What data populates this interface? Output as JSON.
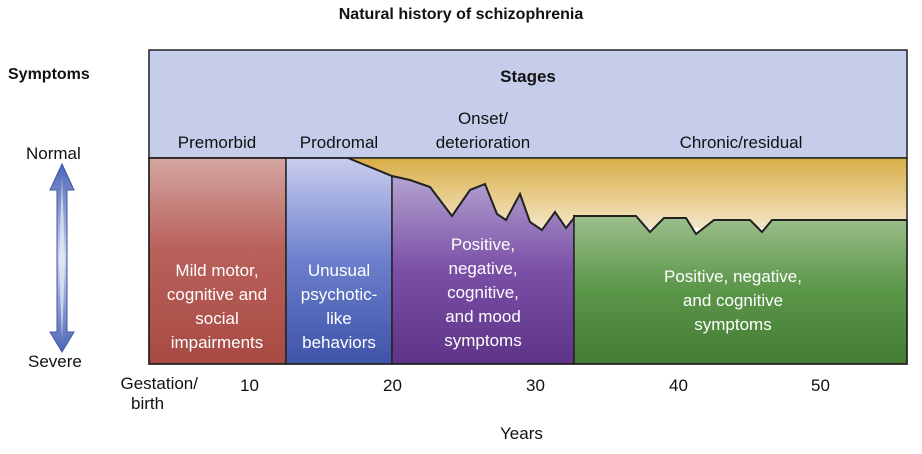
{
  "title": "Natural history of schizophrenia",
  "symptoms_label": "Symptoms",
  "stages_label": "Stages",
  "y_axis": {
    "top": "Normal",
    "bottom": "Severe"
  },
  "x_axis": {
    "gestation_line1": "Gestation/",
    "gestation_line2": "birth",
    "ticks": [
      "10",
      "20",
      "30",
      "40",
      "50"
    ],
    "label": "Years"
  },
  "stages": [
    {
      "name": "Premorbid",
      "description": [
        "Mild motor,",
        "cognitive and",
        "social",
        "impairments"
      ],
      "color": "#b0554f"
    },
    {
      "name": "Prodromal",
      "description": [
        "Unusual",
        "psychotic-",
        "like",
        "behaviors"
      ],
      "color": "#4f63b8"
    },
    {
      "name": [
        "Onset/",
        "deterioration"
      ],
      "description": [
        "Positive,",
        "negative,",
        "cognitive,",
        "and mood",
        "symptoms"
      ],
      "color": "#6a3f94"
    },
    {
      "name": "Chronic/residual",
      "description": [
        "Positive, negative,",
        "and cognitive",
        "symptoms"
      ],
      "color": "#4f8a3e"
    }
  ],
  "colors": {
    "header_bg": "#c5cdea",
    "deterioration_fill": "#d9b352",
    "arrow": "#4d66b8"
  }
}
